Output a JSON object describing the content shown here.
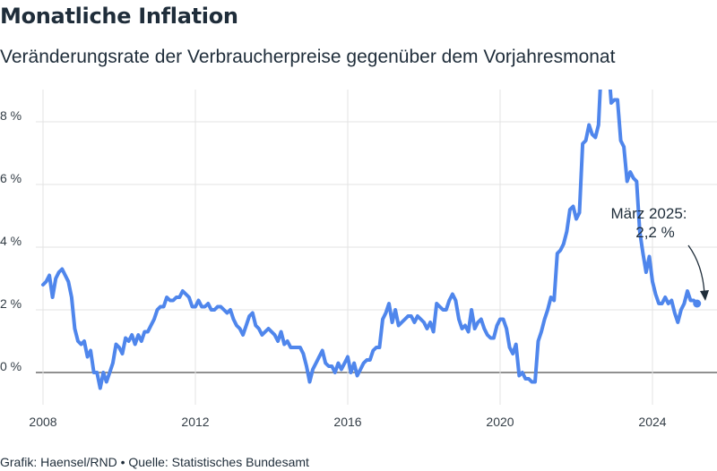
{
  "header": {
    "title": "Monatliche Inflation",
    "subtitle": "Veränderungsrate der Verbraucherpreise gegenüber dem Vorjahresmonat"
  },
  "footer": {
    "credit": "Grafik: Haensel/RND • Quelle: Statistisches Bundesamt"
  },
  "colors": {
    "line": "#4f86ec",
    "grid": "#e3e3e3",
    "zero_line": "#222222"
  },
  "chart_data": {
    "type": "line",
    "title": "Monatliche Inflation",
    "subtitle": "Veränderungsrate der Verbraucherpreise gegenüber dem Vorjahresmonat",
    "xlabel": "",
    "ylabel": "",
    "xlim": [
      2008,
      2025.3
    ],
    "ylim": [
      -1,
      9
    ],
    "x_ticks": [
      2008,
      2012,
      2016,
      2020,
      2024
    ],
    "y_ticks": [
      0,
      2,
      4,
      6,
      8
    ],
    "y_tick_labels": [
      "0 %",
      "2 %",
      "4 %",
      "6 %",
      "8 %"
    ],
    "grid": "vertical and horizontal",
    "annotation": {
      "lines": [
        "März 2025:",
        "2,2 %"
      ],
      "x": 2025.17,
      "y": 2.2
    },
    "series": [
      {
        "start": "2008-01",
        "frequency": "monthly",
        "values": [
          2.8,
          2.9,
          3.1,
          2.4,
          3.0,
          3.2,
          3.3,
          3.1,
          2.9,
          2.4,
          1.4,
          1.0,
          0.9,
          1.0,
          0.5,
          0.7,
          0.0,
          0.0,
          -0.5,
          0.0,
          -0.3,
          0.0,
          0.3,
          0.9,
          0.8,
          0.6,
          1.1,
          1.0,
          1.2,
          0.9,
          1.2,
          1.0,
          1.3,
          1.3,
          1.5,
          1.7,
          2.0,
          2.1,
          2.1,
          2.4,
          2.3,
          2.3,
          2.4,
          2.4,
          2.6,
          2.5,
          2.4,
          2.1,
          2.1,
          2.3,
          2.1,
          2.1,
          2.2,
          2.0,
          2.0,
          2.1,
          2.1,
          2.0,
          1.9,
          2.0,
          1.7,
          1.5,
          1.4,
          1.2,
          1.5,
          1.8,
          1.9,
          1.5,
          1.4,
          1.2,
          1.3,
          1.4,
          1.3,
          1.2,
          1.0,
          1.3,
          0.9,
          1.0,
          0.8,
          0.8,
          0.8,
          0.8,
          0.6,
          0.2,
          -0.3,
          0.1,
          0.3,
          0.5,
          0.7,
          0.3,
          0.2,
          0.2,
          0.0,
          0.3,
          0.1,
          0.3,
          0.5,
          0.0,
          0.3,
          -0.1,
          0.1,
          0.3,
          0.4,
          0.4,
          0.7,
          0.8,
          0.8,
          1.7,
          1.9,
          2.2,
          1.6,
          2.0,
          1.5,
          1.6,
          1.7,
          1.8,
          1.8,
          1.6,
          1.8,
          1.7,
          1.6,
          1.4,
          1.6,
          1.3,
          2.2,
          2.1,
          2.0,
          2.0,
          2.3,
          2.5,
          2.3,
          1.7,
          1.4,
          1.5,
          1.3,
          2.0,
          1.4,
          1.6,
          1.7,
          1.4,
          1.2,
          1.1,
          1.1,
          1.5,
          1.7,
          1.7,
          1.4,
          0.8,
          0.6,
          0.9,
          -0.1,
          0.0,
          -0.2,
          -0.2,
          -0.3,
          -0.3,
          1.0,
          1.3,
          1.7,
          2.0,
          2.4,
          2.3,
          3.8,
          3.9,
          4.1,
          4.5,
          5.2,
          5.3,
          4.9,
          5.1,
          7.3,
          7.4,
          7.9,
          7.6,
          7.5,
          7.9,
          10.0,
          10.4,
          10.0,
          8.6,
          8.7,
          8.7,
          7.4,
          7.2,
          6.1,
          6.4,
          6.2,
          6.1,
          4.5,
          3.8,
          3.2,
          3.7,
          2.9,
          2.5,
          2.2,
          2.2,
          2.4,
          2.2,
          2.3,
          1.9,
          1.6,
          2.0,
          2.2,
          2.6,
          2.3,
          2.3,
          2.2
        ]
      }
    ]
  }
}
